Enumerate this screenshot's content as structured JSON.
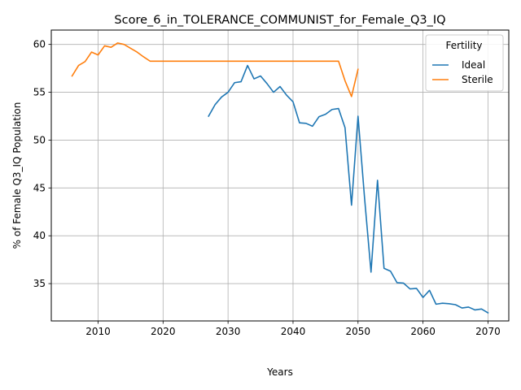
{
  "chart_data": {
    "type": "line",
    "title": "Score_6_in_TOLERANCE_COMMUNIST_for_Female_Q3_IQ",
    "xlabel": "Years",
    "ylabel": "% of Female Q3_IQ Population",
    "xlim": [
      2002.8,
      2073.2
    ],
    "ylim": [
      31.1,
      61.5
    ],
    "xticks": [
      2010,
      2020,
      2030,
      2040,
      2050,
      2060,
      2070
    ],
    "yticks": [
      35,
      40,
      45,
      50,
      55,
      60
    ],
    "grid": true,
    "legend": {
      "title": "Fertility",
      "position": "top-right"
    },
    "series": [
      {
        "name": "Ideal",
        "color": "#1f77b4",
        "x": [
          2027,
          2028,
          2029,
          2030,
          2031,
          2032,
          2033,
          2034,
          2035,
          2036,
          2037,
          2038,
          2039,
          2040,
          2041,
          2042,
          2043,
          2044,
          2045,
          2046,
          2047,
          2048,
          2049,
          2050,
          2051,
          2052,
          2053,
          2054,
          2055,
          2056,
          2057,
          2058,
          2059,
          2060,
          2061,
          2062,
          2063,
          2064,
          2065,
          2066,
          2067,
          2068,
          2069,
          2070
        ],
        "y": [
          52.5,
          53.7,
          54.5,
          55.0,
          56.0,
          56.1,
          57.8,
          56.4,
          56.7,
          55.9,
          55.0,
          55.6,
          54.7,
          54.0,
          51.8,
          51.75,
          51.45,
          52.45,
          52.7,
          53.2,
          53.3,
          51.3,
          43.2,
          52.5,
          44.0,
          36.2,
          45.8,
          36.6,
          36.3,
          35.1,
          35.05,
          34.45,
          34.5,
          33.55,
          34.3,
          32.85,
          32.95,
          32.9,
          32.8,
          32.45,
          32.55,
          32.25,
          32.35,
          31.95
        ]
      },
      {
        "name": "Sterile",
        "color": "#ff7f0e",
        "x": [
          2006,
          2007,
          2008,
          2009,
          2010,
          2011,
          2012,
          2013,
          2014,
          2015,
          2016,
          2017,
          2018,
          2019,
          2020,
          2021,
          2022,
          2023,
          2024,
          2025,
          2026,
          2027,
          2028,
          2029,
          2030,
          2031,
          2032,
          2033,
          2034,
          2035,
          2036,
          2037,
          2038,
          2039,
          2040,
          2041,
          2042,
          2043,
          2044,
          2045,
          2046,
          2047,
          2048,
          2049,
          2050
        ],
        "y": [
          56.7,
          57.8,
          58.2,
          59.2,
          58.9,
          59.85,
          59.7,
          60.15,
          60.0,
          59.6,
          59.2,
          58.7,
          58.25,
          58.25,
          58.25,
          58.25,
          58.25,
          58.25,
          58.25,
          58.25,
          58.25,
          58.25,
          58.25,
          58.25,
          58.25,
          58.25,
          58.25,
          58.25,
          58.25,
          58.25,
          58.25,
          58.25,
          58.25,
          58.25,
          58.25,
          58.25,
          58.25,
          58.25,
          58.25,
          58.25,
          58.25,
          58.25,
          56.2,
          54.55,
          57.4
        ]
      }
    ]
  }
}
